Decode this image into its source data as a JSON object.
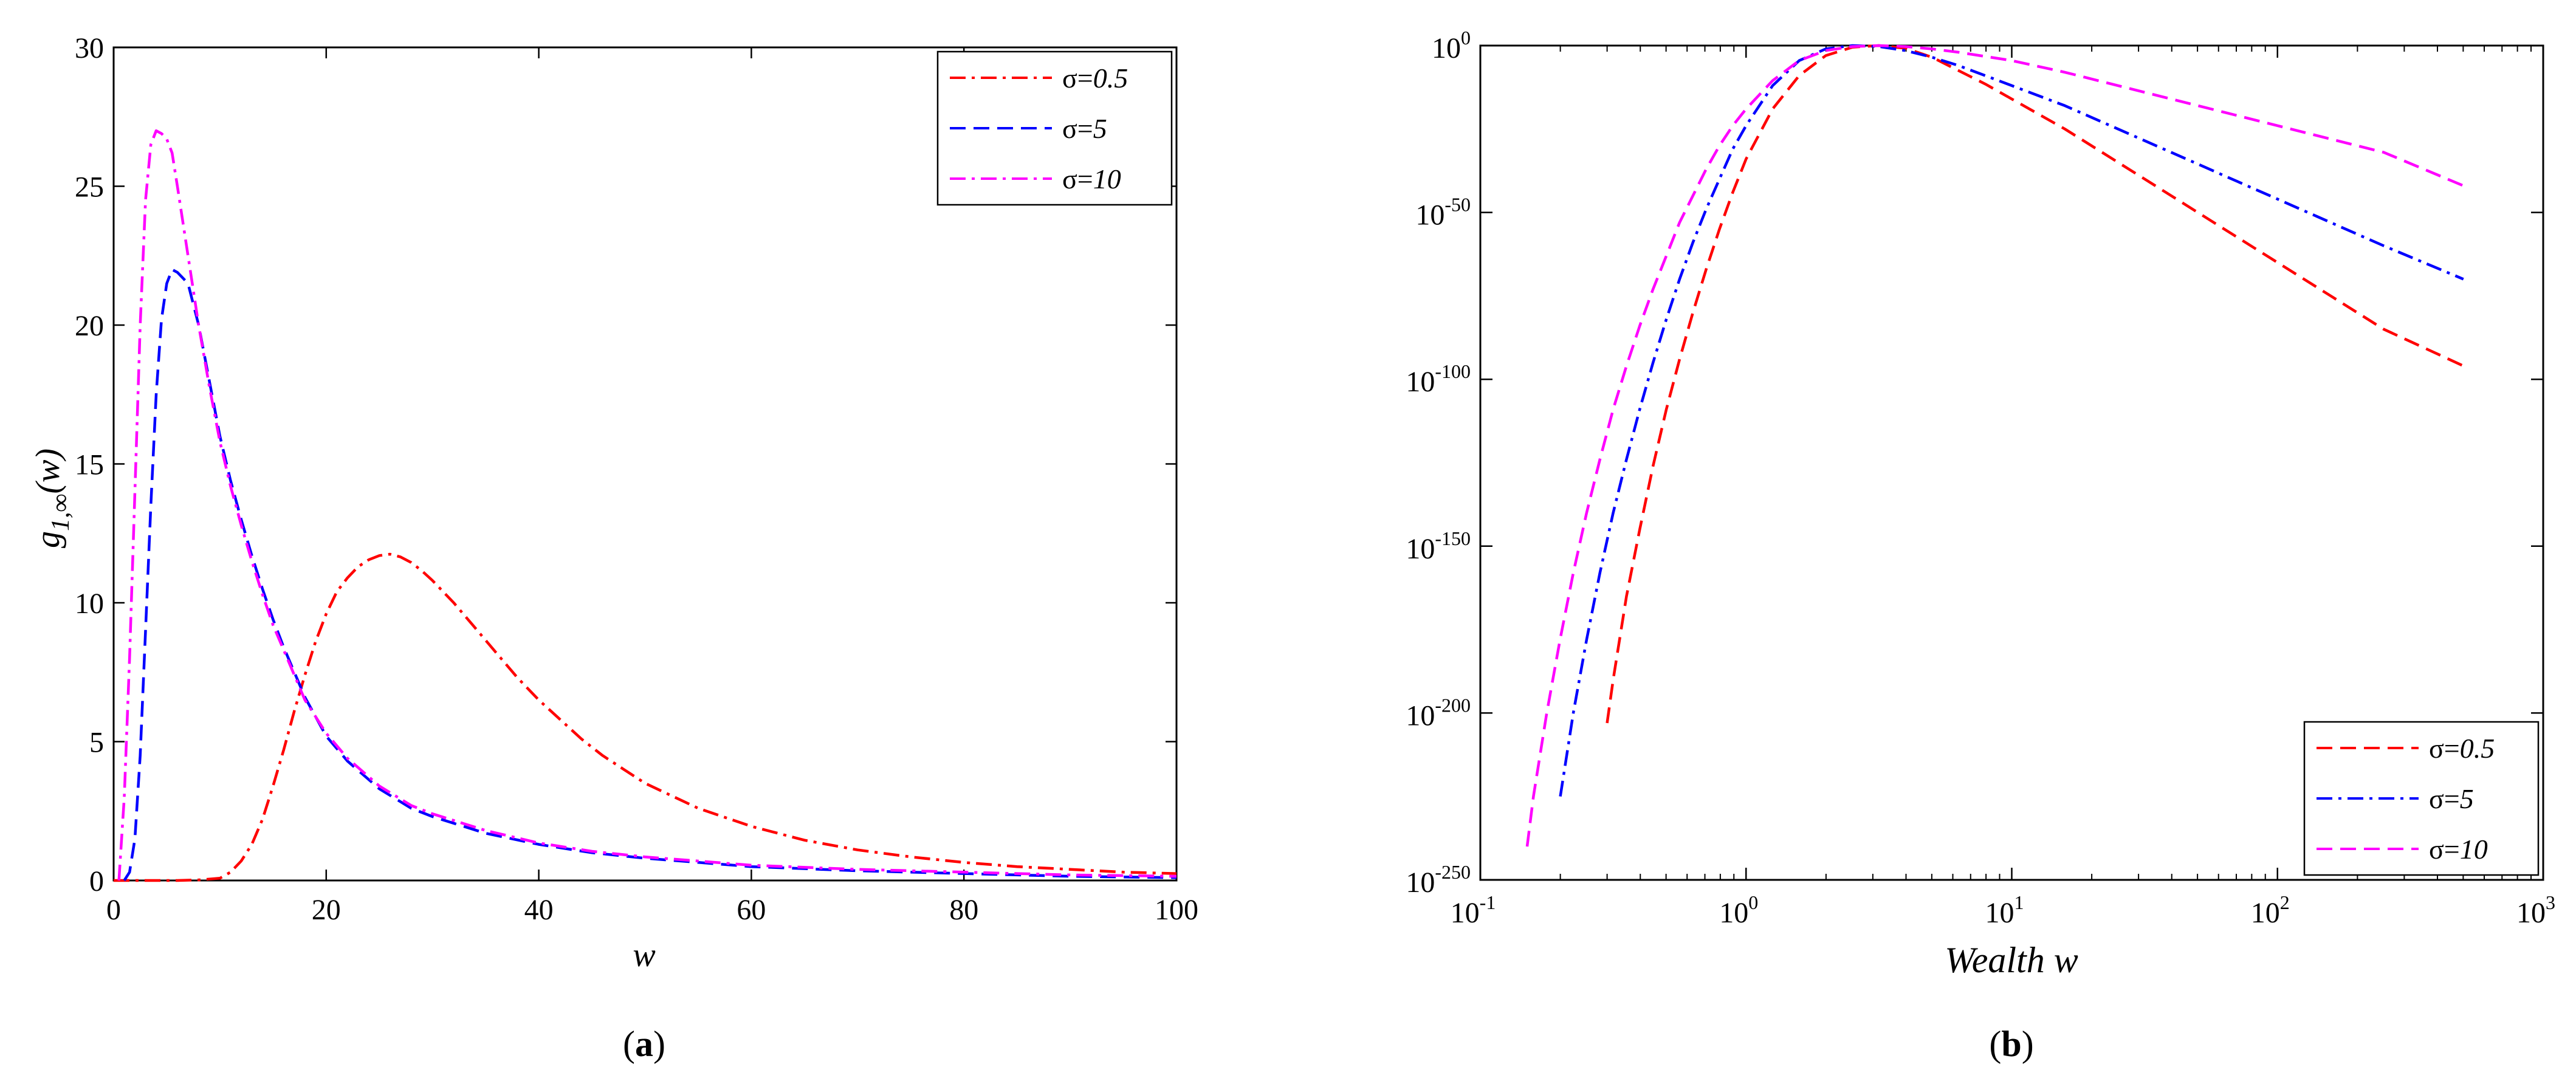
{
  "chart_data": [
    {
      "id": "a",
      "type": "line",
      "caption_open": "(",
      "caption_letter": "a",
      "caption_close": ")",
      "xlabel": "w",
      "ylabel_main": "g",
      "ylabel_sub": "1,∞",
      "ylabel_arg": "(w)",
      "xlim": [
        0,
        100
      ],
      "ylim": [
        0,
        30
      ],
      "xticks": [
        0,
        20,
        40,
        60,
        80,
        100
      ],
      "yticks": [
        0,
        5,
        10,
        15,
        20,
        25,
        30
      ],
      "legend_position": "top-right",
      "series": [
        {
          "name": "σ=0.5",
          "name_prefix": "σ=",
          "name_value": "0.5",
          "color": "#ff0000",
          "dash": "dashdot",
          "x": [
            0,
            3,
            6,
            8,
            10,
            11,
            12,
            13,
            14,
            15,
            16,
            17,
            18,
            19,
            20,
            21,
            22,
            23,
            24,
            25,
            26,
            27,
            28,
            29,
            30,
            32,
            34,
            36,
            38,
            40,
            42,
            44,
            46,
            48,
            50,
            55,
            60,
            65,
            70,
            75,
            80,
            85,
            90,
            95,
            100
          ],
          "y": [
            0,
            0,
            0,
            0.02,
            0.08,
            0.3,
            0.7,
            1.3,
            2.2,
            3.4,
            4.7,
            6.1,
            7.4,
            8.6,
            9.6,
            10.4,
            10.9,
            11.3,
            11.55,
            11.7,
            11.75,
            11.65,
            11.45,
            11.15,
            10.8,
            10.0,
            9.1,
            8.2,
            7.3,
            6.5,
            5.8,
            5.1,
            4.5,
            4.0,
            3.5,
            2.6,
            1.95,
            1.45,
            1.1,
            0.85,
            0.65,
            0.5,
            0.4,
            0.3,
            0.25
          ]
        },
        {
          "name": "σ=5",
          "name_prefix": "σ=",
          "name_value": "5",
          "color": "#0000ff",
          "dash": "dashed",
          "x": [
            1,
            1.5,
            2,
            2.5,
            3,
            3.5,
            4,
            4.5,
            5,
            5.5,
            6,
            6.5,
            7,
            8,
            9,
            10,
            11,
            12,
            13,
            14,
            15,
            16,
            18,
            20,
            22,
            25,
            28,
            30,
            35,
            40,
            45,
            50,
            55,
            60,
            70,
            80,
            90,
            100
          ],
          "y": [
            0,
            0.3,
            1.5,
            4.5,
            9.0,
            13.5,
            17.5,
            20.2,
            21.5,
            22.0,
            21.9,
            21.7,
            21.5,
            20.0,
            18.0,
            16.0,
            14.4,
            13.0,
            11.7,
            10.5,
            9.4,
            8.4,
            6.6,
            5.2,
            4.3,
            3.3,
            2.6,
            2.3,
            1.7,
            1.3,
            1.0,
            0.8,
            0.65,
            0.5,
            0.35,
            0.25,
            0.15,
            0.1
          ]
        },
        {
          "name": "σ=10",
          "name_prefix": "σ=",
          "name_value": "10",
          "color": "#ff00ff",
          "dash": "dashdot",
          "x": [
            0.5,
            1,
            1.5,
            2,
            2.5,
            3,
            3.5,
            4,
            4.5,
            5,
            5.5,
            6,
            7,
            8,
            9,
            10,
            11,
            12,
            13,
            14,
            15,
            16,
            18,
            20,
            22,
            25,
            28,
            30,
            35,
            40,
            45,
            50,
            55,
            60,
            70,
            80,
            90,
            100
          ],
          "y": [
            0,
            3.0,
            8.0,
            14.0,
            20.0,
            24.5,
            26.5,
            27.0,
            26.9,
            26.7,
            26.2,
            25.0,
            22.5,
            20.0,
            17.8,
            15.8,
            14.2,
            12.8,
            11.5,
            10.3,
            9.2,
            8.3,
            6.5,
            5.3,
            4.4,
            3.4,
            2.7,
            2.4,
            1.8,
            1.35,
            1.05,
            0.85,
            0.7,
            0.55,
            0.4,
            0.3,
            0.2,
            0.15
          ]
        }
      ]
    },
    {
      "id": "b",
      "type": "line",
      "caption_open": "(",
      "caption_letter": "b",
      "caption_close": ")",
      "xlabel": "Wealth w",
      "xscale": "log",
      "yscale": "log",
      "xlim_log10": [
        -1,
        3
      ],
      "ylim_log10": [
        -250,
        0
      ],
      "xtick_base": "10",
      "xtick_exponents": [
        "-1",
        "0",
        "1",
        "2",
        "3"
      ],
      "ytick_base": "10",
      "ytick_exponents": [
        "0",
        "-50",
        "-100",
        "-150",
        "-200",
        "-250"
      ],
      "legend_position": "bottom-right",
      "series": [
        {
          "name": "σ=0.5",
          "name_prefix": "σ=",
          "name_value": "0.5",
          "color": "#ff0000",
          "dash": "dashed",
          "log10_x": [
            -0.523,
            -0.5,
            -0.45,
            -0.4,
            -0.35,
            -0.3,
            -0.25,
            -0.2,
            -0.15,
            -0.1,
            -0.05,
            0,
            0.1,
            0.2,
            0.3,
            0.4,
            0.5,
            0.6,
            0.7,
            0.8,
            0.9,
            1.0,
            1.2,
            1.4,
            1.6,
            1.8,
            2.0,
            2.2,
            2.4,
            2.7
          ],
          "log10_y": [
            -203,
            -190,
            -165,
            -145,
            -126,
            -109,
            -94,
            -80,
            -67,
            -55,
            -44,
            -34,
            -19,
            -9,
            -3,
            -0.5,
            0,
            -0.8,
            -3.5,
            -7.5,
            -11.5,
            -16,
            -25,
            -35,
            -45,
            -55,
            -65,
            -75,
            -85,
            -96
          ]
        },
        {
          "name": "σ=5",
          "name_prefix": "σ=",
          "name_value": "5",
          "color": "#0000ff",
          "dash": "dashdot",
          "log10_x": [
            -0.699,
            -0.65,
            -0.6,
            -0.55,
            -0.5,
            -0.45,
            -0.4,
            -0.35,
            -0.3,
            -0.25,
            -0.2,
            -0.15,
            -0.1,
            -0.05,
            0,
            0.1,
            0.2,
            0.3,
            0.4,
            0.5,
            0.6,
            0.7,
            0.8,
            0.9,
            1.0,
            1.2,
            1.4,
            1.6,
            1.8,
            2.0,
            2.2,
            2.4,
            2.7
          ],
          "log10_y": [
            -225,
            -200,
            -178,
            -158,
            -140,
            -124,
            -109,
            -95,
            -82,
            -70,
            -59,
            -49,
            -40,
            -31,
            -24,
            -12,
            -4.5,
            -1,
            0,
            -0.3,
            -1.5,
            -3.5,
            -6,
            -9,
            -12,
            -18,
            -25,
            -32,
            -39,
            -46,
            -53,
            -60,
            -70
          ]
        },
        {
          "name": "σ=10",
          "name_prefix": "σ=",
          "name_value": "10",
          "color": "#ff00ff",
          "dash": "dashed",
          "log10_x": [
            -0.824,
            -0.8,
            -0.75,
            -0.7,
            -0.65,
            -0.6,
            -0.55,
            -0.5,
            -0.45,
            -0.4,
            -0.35,
            -0.3,
            -0.25,
            -0.2,
            -0.15,
            -0.1,
            -0.05,
            0,
            0.1,
            0.2,
            0.3,
            0.4,
            0.5,
            0.6,
            0.7,
            0.8,
            1.0,
            1.2,
            1.4,
            1.6,
            1.8,
            2.0,
            2.2,
            2.4,
            2.7
          ],
          "log10_y": [
            -240,
            -225,
            -200,
            -178,
            -158,
            -140,
            -124,
            -109,
            -96,
            -84,
            -73,
            -63,
            -53,
            -45,
            -37,
            -30,
            -24,
            -19,
            -10.5,
            -4.5,
            -1.5,
            -0.3,
            0,
            -0.3,
            -1,
            -2,
            -4.5,
            -8,
            -12,
            -16,
            -20,
            -24,
            -28,
            -32,
            -42
          ]
        }
      ]
    }
  ]
}
